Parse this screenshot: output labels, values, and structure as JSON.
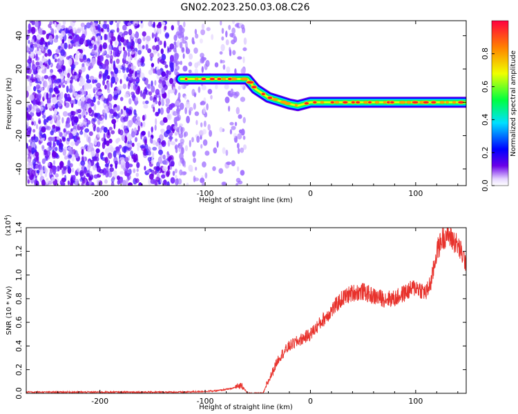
{
  "title": "GN02.2023.250.03.08.C26",
  "colors": {
    "snr_line": "#e8322c",
    "axis": "#000000",
    "noise_dark": "#6a00e8",
    "noise_light": "#d8c4ff"
  },
  "chart_data": [
    {
      "type": "heatmap",
      "xlabel": "Height of straight line (km)",
      "ylabel": "Frequency (Hz)",
      "xlim": [
        -270,
        148
      ],
      "ylim": [
        -50,
        49
      ],
      "xticks": [
        -200,
        -100,
        0,
        100
      ],
      "yticks": [
        -40,
        -20,
        0,
        20,
        40
      ],
      "colorbar": {
        "label": "Normalized spectral amplitude",
        "range": [
          0,
          1
        ],
        "ticks": [
          "0.0",
          "0.2",
          "0.4",
          "0.6",
          "0.8"
        ],
        "colormap": "rainbow (purple-blue-cyan-green-yellow-red)"
      },
      "ridge": {
        "x": [
          -123,
          -60,
          -52,
          -40,
          -30,
          -20,
          -12,
          0,
          20,
          60,
          80,
          90,
          100,
          120,
          148
        ],
        "frequency": [
          14,
          14,
          8,
          3,
          1,
          -1,
          -2,
          0,
          0,
          0,
          0,
          0,
          0,
          0,
          0
        ]
      },
      "noise_region": "broadband scattered energy (amplitude ~0.1-0.4) for heights below about -60 km"
    },
    {
      "type": "line",
      "xlabel": "Height of straight line (km)",
      "ylabel": "SNR (10 * v/v)",
      "y_exponent": "(x10",
      "y_exponent_power": "4",
      "y_exponent_close": ")",
      "xlim": [
        -270,
        148
      ],
      "ylim": [
        0.0,
        1.4
      ],
      "xticks": [
        -200,
        -100,
        0,
        100
      ],
      "yticks": [
        "0.0",
        "0.2",
        "0.4",
        "0.6",
        "0.8",
        "1.0",
        "1.2",
        "1.4"
      ],
      "series": [
        {
          "x": [
            -270,
            -200,
            -120,
            -90,
            -75,
            -65,
            -60,
            -45,
            -40,
            -35,
            -30,
            -20,
            -10,
            0,
            10,
            20,
            30,
            40,
            50,
            60,
            70,
            80,
            90,
            100,
            110,
            115,
            120,
            125,
            130,
            140,
            148
          ],
          "values": [
            0.01,
            0.01,
            0.01,
            0.02,
            0.04,
            0.07,
            0.0,
            0.0,
            0.1,
            0.2,
            0.3,
            0.4,
            0.45,
            0.5,
            0.6,
            0.7,
            0.8,
            0.85,
            0.86,
            0.82,
            0.8,
            0.8,
            0.85,
            0.9,
            0.85,
            0.95,
            1.2,
            1.3,
            1.35,
            1.25,
            1.1
          ]
        }
      ]
    }
  ]
}
